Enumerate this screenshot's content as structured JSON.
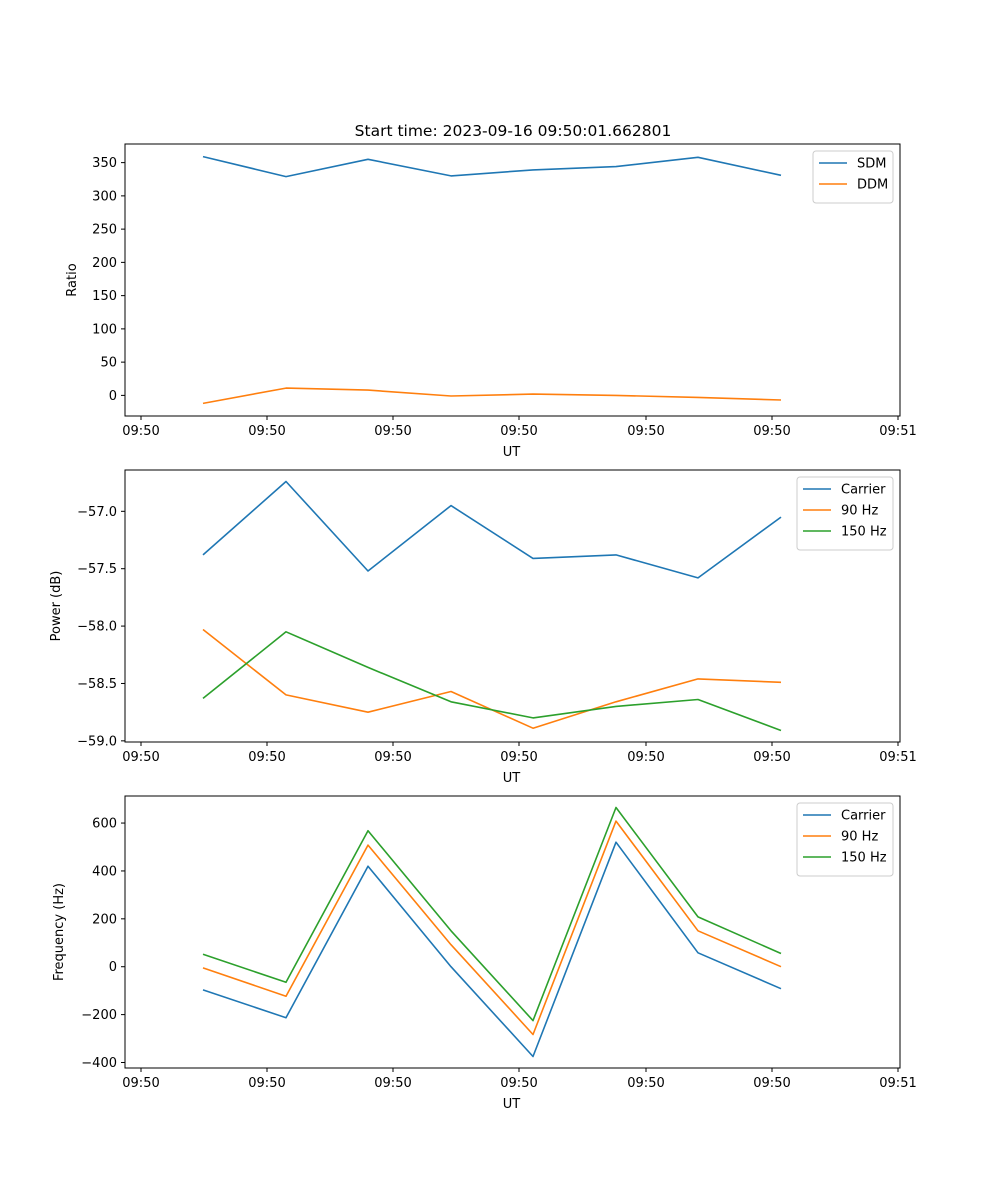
{
  "title": "Start time: 2023-09-16 09:50:01.662801",
  "chart_data": [
    {
      "type": "line",
      "title": "Start time: 2023-09-16 09:50:01.662801",
      "xlabel": "UT",
      "ylabel": "Ratio",
      "xticks": [
        "09:50",
        "09:50",
        "09:50",
        "09:50",
        "09:50",
        "09:50",
        "09:51"
      ],
      "yticks": [
        "0",
        "50",
        "100",
        "150",
        "200",
        "250",
        "300",
        "350"
      ],
      "ytick_values": [
        0,
        50,
        100,
        150,
        200,
        250,
        300,
        350
      ],
      "ylim": [
        -31,
        378
      ],
      "legend_position": "top-right",
      "series": [
        {
          "name": "SDM",
          "color": "#1f77b4",
          "values": [
            359,
            329,
            355,
            330,
            339,
            344,
            358,
            331
          ]
        },
        {
          "name": "DDM",
          "color": "#ff7f0e",
          "values": [
            -12,
            11,
            8,
            -1,
            2,
            0,
            -3,
            -7
          ]
        }
      ]
    },
    {
      "type": "line",
      "title": "",
      "xlabel": "UT",
      "ylabel": "Power (dB)",
      "xticks": [
        "09:50",
        "09:50",
        "09:50",
        "09:50",
        "09:50",
        "09:50",
        "09:51"
      ],
      "yticks": [
        "−59.0",
        "−58.5",
        "−58.0",
        "−57.5",
        "−57.0"
      ],
      "ytick_values": [
        -59.0,
        -58.5,
        -58.0,
        -57.5,
        -57.0
      ],
      "ylim": [
        -59.01,
        -56.64
      ],
      "legend_position": "top-right",
      "series": [
        {
          "name": "Carrier",
          "color": "#1f77b4",
          "values": [
            -57.38,
            -56.74,
            -57.52,
            -56.95,
            -57.41,
            -57.38,
            -57.58,
            -57.05
          ]
        },
        {
          "name": "90 Hz",
          "color": "#ff7f0e",
          "values": [
            -58.03,
            -58.6,
            -58.75,
            -58.57,
            -58.89,
            -58.66,
            -58.46,
            -58.49
          ]
        },
        {
          "name": "150 Hz",
          "color": "#2ca02c",
          "values": [
            -58.63,
            -58.05,
            -58.36,
            -58.66,
            -58.8,
            -58.7,
            -58.64,
            -58.91
          ]
        }
      ]
    },
    {
      "type": "line",
      "title": "",
      "xlabel": "UT",
      "ylabel": "Frequency (Hz)",
      "xticks": [
        "09:50",
        "09:50",
        "09:50",
        "09:50",
        "09:50",
        "09:50",
        "09:51"
      ],
      "yticks": [
        "−400",
        "−200",
        "0",
        "200",
        "400",
        "600"
      ],
      "ytick_values": [
        -400,
        -200,
        0,
        200,
        400,
        600
      ],
      "ylim": [
        -423,
        713
      ],
      "legend_position": "top-right",
      "series": [
        {
          "name": "Carrier",
          "color": "#1f77b4",
          "values": [
            -97,
            -213,
            420,
            0,
            -375,
            520,
            58,
            -92
          ]
        },
        {
          "name": "90 Hz",
          "color": "#ff7f0e",
          "values": [
            -5,
            -123,
            508,
            92,
            -283,
            608,
            150,
            0
          ]
        },
        {
          "name": "150 Hz",
          "color": "#2ca02c",
          "values": [
            52,
            -65,
            568,
            150,
            -225,
            665,
            208,
            55
          ]
        }
      ]
    }
  ]
}
